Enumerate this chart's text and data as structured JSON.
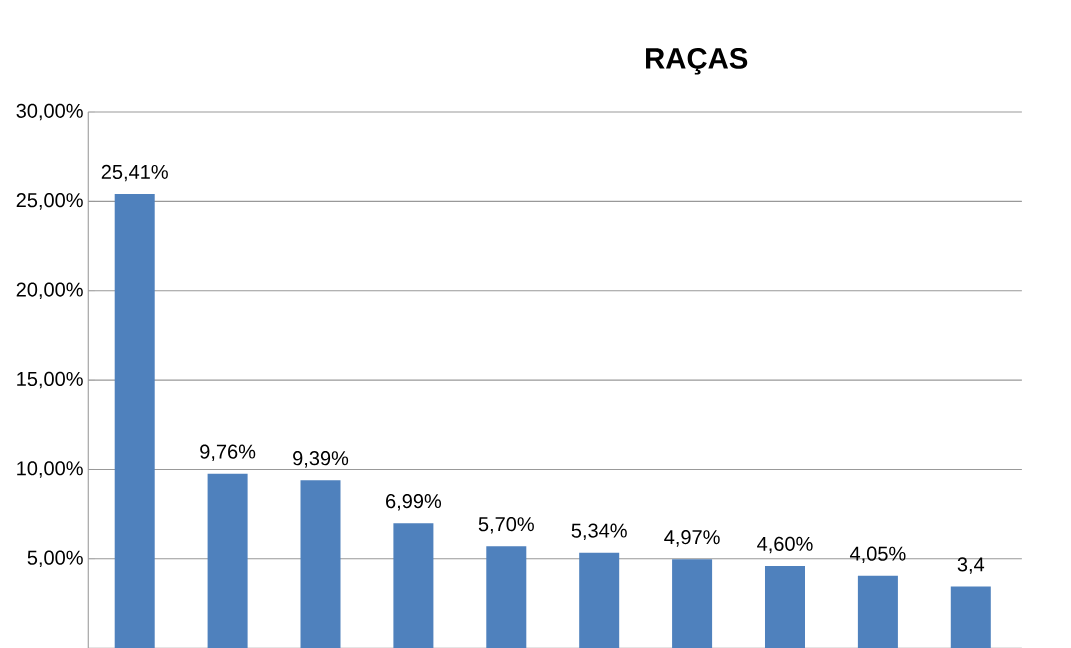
{
  "chart_data": {
    "type": "bar",
    "title": "RAÇAS",
    "categories": [
      null,
      null,
      null,
      null,
      null,
      null,
      null,
      null,
      null,
      null
    ],
    "values": [
      25.41,
      9.76,
      9.39,
      6.99,
      5.7,
      5.34,
      4.97,
      4.6,
      4.05,
      3.45
    ],
    "value_labels": [
      "25,41%",
      "9,76%",
      "9,39%",
      "6,99%",
      "5,70%",
      "5,34%",
      "4,97%",
      "4,60%",
      "4,05%",
      "3,4"
    ],
    "color": "#4f81bd",
    "ylim": [
      0,
      30
    ],
    "yticks": [
      {
        "value": 5,
        "label": "5,00%"
      },
      {
        "value": 10,
        "label": "10,00%"
      },
      {
        "value": 15,
        "label": "15,00%"
      },
      {
        "value": 20,
        "label": "20,00%"
      },
      {
        "value": 25,
        "label": "25,00%"
      },
      {
        "value": 30,
        "label": "30,00%"
      }
    ],
    "grid": "y"
  }
}
